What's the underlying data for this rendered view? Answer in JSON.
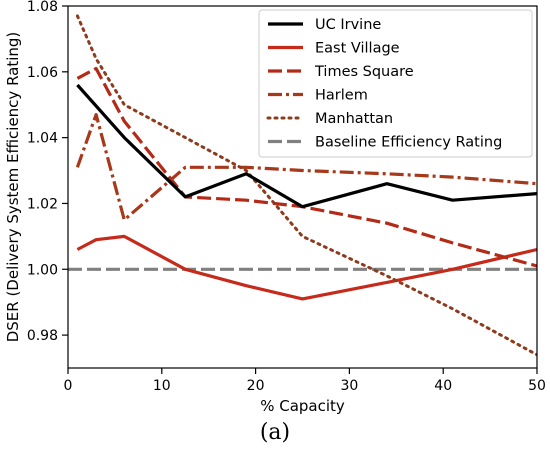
{
  "chart_data": {
    "type": "line",
    "xlabel": "% Capacity",
    "ylabel": "DSER (Delivery System Efficiency Rating)",
    "xlim": [
      0,
      50
    ],
    "ylim": [
      0.97,
      1.08
    ],
    "x_ticks": [
      0,
      10,
      20,
      30,
      40,
      50
    ],
    "y_ticks": [
      0.98,
      1.0,
      1.02,
      1.04,
      1.06,
      1.08
    ],
    "x_tick_labels": [
      "0",
      "10",
      "20",
      "30",
      "40",
      "50"
    ],
    "y_tick_labels": [
      "0.98",
      "1.00",
      "1.02",
      "1.04",
      "1.06",
      "1.08"
    ],
    "legend_position": "top-right",
    "grid": false,
    "series": [
      {
        "name": "UC Irvine",
        "color": "#000000",
        "style": "solid",
        "points": [
          [
            1,
            1.056
          ],
          [
            6,
            1.04
          ],
          [
            12.5,
            1.022
          ],
          [
            19,
            1.029
          ],
          [
            25,
            1.019
          ],
          [
            34,
            1.026
          ],
          [
            41,
            1.021
          ],
          [
            50,
            1.023
          ]
        ]
      },
      {
        "name": "East Village",
        "color": "#c62a1a",
        "style": "solid",
        "points": [
          [
            1,
            1.006
          ],
          [
            3,
            1.009
          ],
          [
            6,
            1.01
          ],
          [
            12.5,
            1.0
          ],
          [
            19,
            0.995
          ],
          [
            25,
            0.991
          ],
          [
            34,
            0.996
          ],
          [
            41,
            1.0
          ],
          [
            50,
            1.006
          ]
        ]
      },
      {
        "name": "Times Square",
        "color": "#b52a17",
        "style": "dashed",
        "points": [
          [
            1,
            1.058
          ],
          [
            3,
            1.061
          ],
          [
            6,
            1.045
          ],
          [
            12.5,
            1.022
          ],
          [
            19,
            1.021
          ],
          [
            25,
            1.019
          ],
          [
            34,
            1.014
          ],
          [
            41,
            1.008
          ],
          [
            50,
            1.001
          ]
        ]
      },
      {
        "name": "Harlem",
        "color": "#a8381a",
        "style": "dashdot",
        "points": [
          [
            1,
            1.031
          ],
          [
            3,
            1.047
          ],
          [
            6,
            1.015
          ],
          [
            12.5,
            1.031
          ],
          [
            19,
            1.031
          ],
          [
            25,
            1.03
          ],
          [
            34,
            1.029
          ],
          [
            41,
            1.028
          ],
          [
            50,
            1.026
          ]
        ]
      },
      {
        "name": "Manhattan",
        "color": "#8e3a1c",
        "style": "dotted",
        "points": [
          [
            1,
            1.077
          ],
          [
            3,
            1.064
          ],
          [
            6,
            1.05
          ],
          [
            12.5,
            1.04
          ],
          [
            19,
            1.03
          ],
          [
            25,
            1.01
          ],
          [
            34,
            0.998
          ],
          [
            41,
            0.988
          ],
          [
            50,
            0.974
          ]
        ]
      },
      {
        "name": "Baseline Efficiency Rating",
        "color": "#808080",
        "style": "dashed",
        "points": [
          [
            0,
            1.0
          ],
          [
            50,
            1.0
          ]
        ]
      }
    ]
  },
  "caption": "(a)"
}
